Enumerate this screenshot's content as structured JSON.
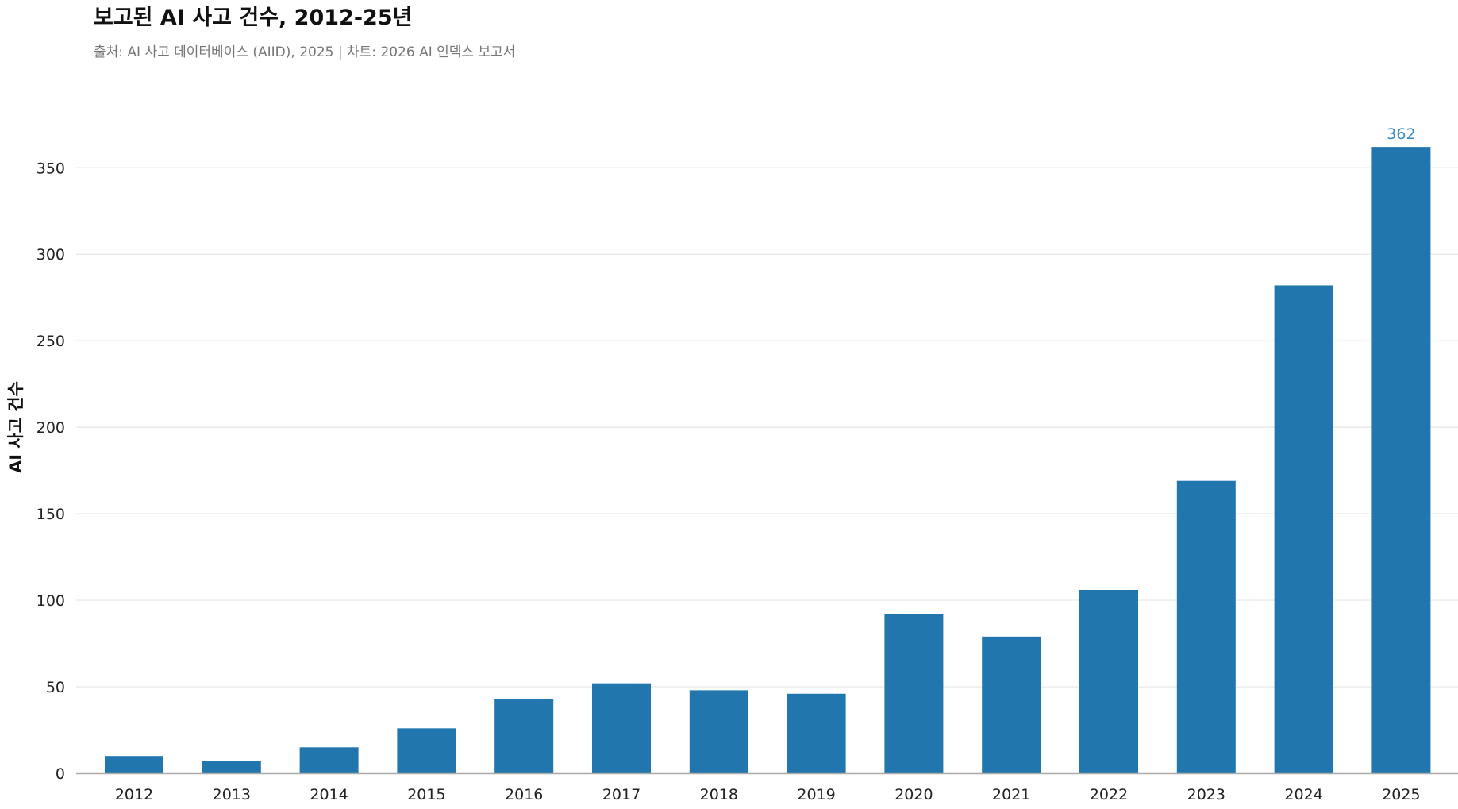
{
  "chart_data": {
    "type": "bar",
    "title": "보고된 AI 사고 건수, 2012-25년",
    "subtitle": "출처: AI 사고 데이터베이스 (AIID), 2025 | 차트: 2026 AI 인덱스 보고서",
    "xlabel": "",
    "ylabel": "AI 사고 건수",
    "categories": [
      "2012",
      "2013",
      "2014",
      "2015",
      "2016",
      "2017",
      "2018",
      "2019",
      "2020",
      "2021",
      "2022",
      "2023",
      "2024",
      "2025"
    ],
    "values": [
      10,
      7,
      15,
      26,
      43,
      52,
      48,
      46,
      92,
      79,
      106,
      169,
      282,
      362
    ],
    "ylim": [
      0,
      385
    ],
    "yticks": [
      0,
      50,
      100,
      150,
      200,
      250,
      300,
      350
    ],
    "data_labels": [
      {
        "category": "2025",
        "text": "362"
      }
    ],
    "grid": true,
    "bar_color": "#2176ae",
    "label_color": "#3a8cc0"
  }
}
